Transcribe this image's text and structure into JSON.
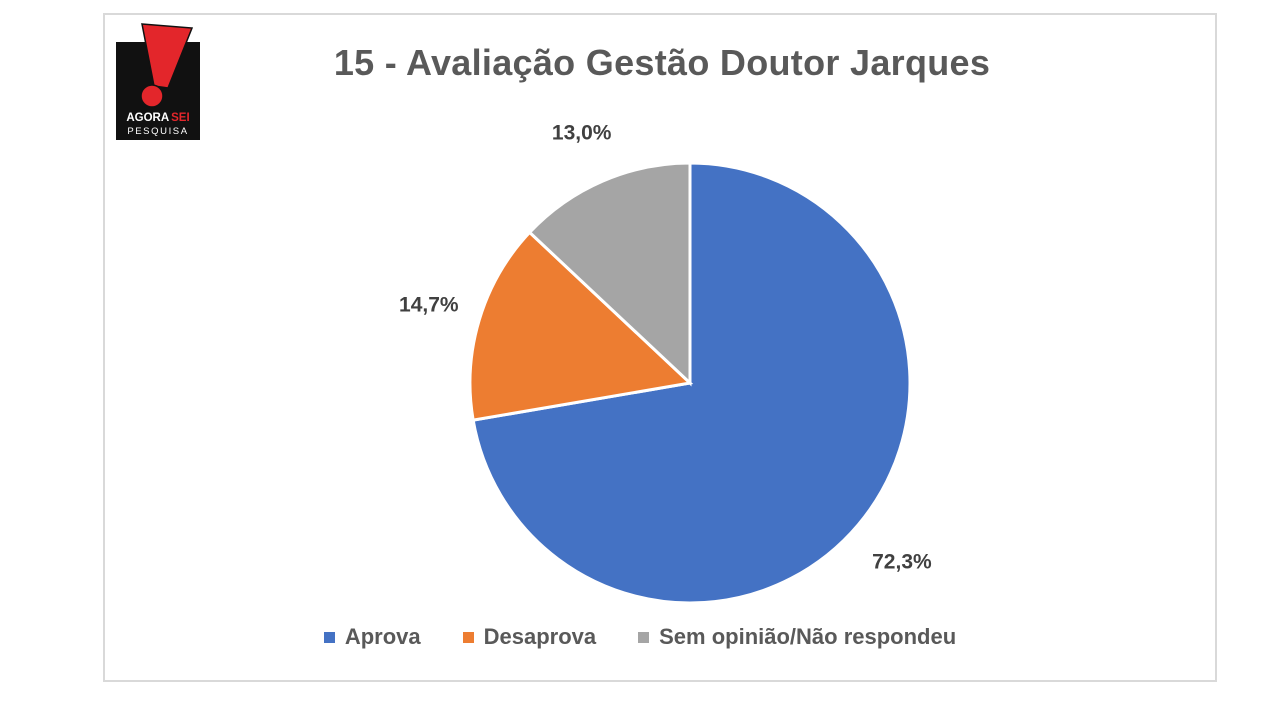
{
  "logo": {
    "line1_a": "AGORA",
    "line1_b": "SEI",
    "line2": "PESQUISA",
    "colors": {
      "mark": "#e3262b",
      "bg": "#111111",
      "text": "#ffffff"
    }
  },
  "chart_data": {
    "type": "pie",
    "title": "15 - Avaliação Gestão Doutor Jarques",
    "legend_position": "bottom",
    "categories": [
      "Aprova",
      "Desaprova",
      "Sem opinião/Não respondeu"
    ],
    "values": [
      72.3,
      14.7,
      13.0
    ],
    "data_labels": [
      "72,3%",
      "14,7%",
      "13,0%"
    ],
    "colors": [
      "#4472c4",
      "#ed7d31",
      "#a5a5a5"
    ],
    "start_angle_deg": 0,
    "direction": "clockwise"
  }
}
